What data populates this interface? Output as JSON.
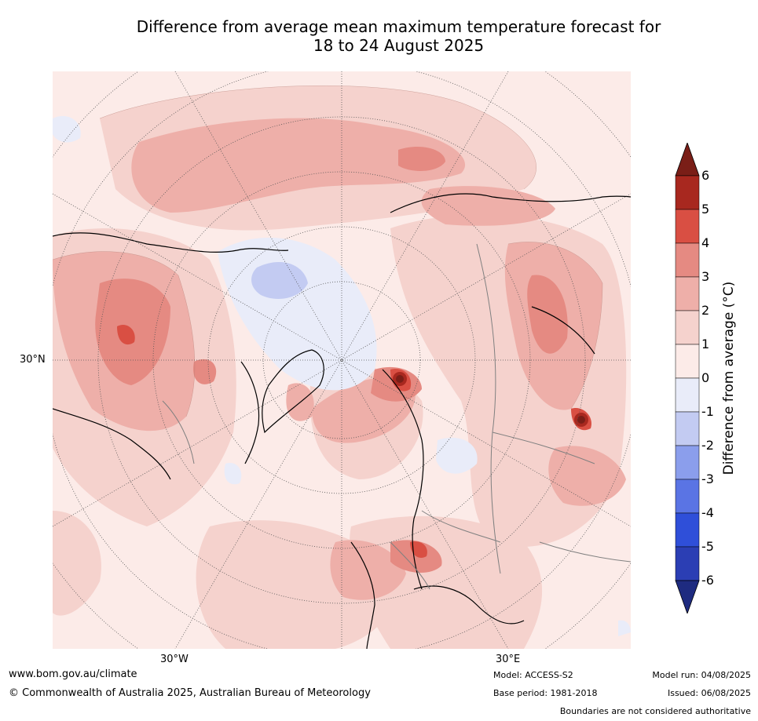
{
  "title": {
    "line1": "Difference from average mean maximum temperature forecast for",
    "line2": "18 to 24 August 2025"
  },
  "map": {
    "lat_label": "30°N",
    "lon_labels": [
      "30°W",
      "30°E"
    ],
    "colors": {
      "lt0_1": "#fcebe8",
      "r1_2": "#f5d2cd",
      "r2_3": "#eeafa9",
      "r3_4": "#e58a82",
      "r4_5": "#d94f43",
      "r5_6": "#a8281f",
      "r6p": "#7a1e17",
      "b0_1": "#e9ecf9",
      "b1_2": "#c3cbf2"
    }
  },
  "colorbar": {
    "ticks": [
      "6",
      "5",
      "4",
      "3",
      "2",
      "1",
      "0",
      "-1",
      "-2",
      "-3",
      "-4",
      "-5",
      "-6"
    ],
    "label": "Difference from average (°C)",
    "colors": [
      "#7a1e17",
      "#a8281f",
      "#d94f43",
      "#e58a82",
      "#eeafa9",
      "#f5d2cd",
      "#fcebe8",
      "#e9ecf9",
      "#c3cbf2",
      "#8b9eec",
      "#5a74e4",
      "#2f4fd9",
      "#2b3eb4",
      "#1e2b80"
    ]
  },
  "footer": {
    "website": "www.bom.gov.au/climate",
    "copyright": "© Commonwealth of Australia 2025, Australian Bureau of Meteorology",
    "model": "Model: ACCESS-S2",
    "base_period": "Base period: 1981-2018",
    "model_run": "Model run: 04/08/2025",
    "issued": "Issued: 06/08/2025",
    "disclaimer": "Boundaries are not considered authoritative"
  }
}
